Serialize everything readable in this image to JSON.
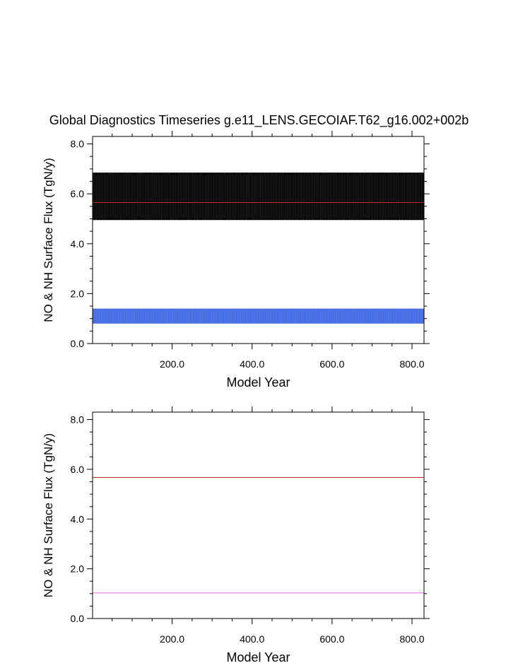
{
  "title": "Global Diagnostics Timeseries g.e11_LENS.GECOIAF.T62_g16.002+002b",
  "colors": {
    "black_band": "#000000",
    "blue_band": "#4169e1",
    "red_line": "#cc2222",
    "magenta_line": "#ff66ff"
  },
  "chart_data": [
    {
      "type": "line",
      "title": "Global Diagnostics Timeseries g.e11_LENS.GECOIAF.T62_g16.002+002b",
      "xlabel": "Model Year",
      "ylabel": "NO & NH Surface Flux (TgN/y)",
      "xlim": [
        1,
        830
      ],
      "ylim": [
        0,
        8.3
      ],
      "x_ticks": [
        200,
        400,
        600,
        800
      ],
      "x_tick_labels": [
        "200.0",
        "400.0",
        "600.0",
        "800.0"
      ],
      "y_ticks": [
        0,
        2,
        4,
        6,
        8
      ],
      "y_tick_labels": [
        "0.0",
        "2.0",
        "4.0",
        "6.0",
        "8.0"
      ],
      "grid": false,
      "series": [
        {
          "color": "#000000",
          "style": "oscillating band",
          "min": 4.95,
          "max": 6.85
        },
        {
          "color": "#cc2222",
          "style": "mean line",
          "value": 5.65
        },
        {
          "color": "#4169e1",
          "style": "oscillating band",
          "min": 0.8,
          "max": 1.4
        }
      ]
    },
    {
      "type": "line",
      "title": "",
      "xlabel": "Model Year",
      "ylabel": "NO & NH Surface Flux (TgN/y)",
      "xlim": [
        1,
        830
      ],
      "ylim": [
        0,
        8.3
      ],
      "x_ticks": [
        200,
        400,
        600,
        800
      ],
      "x_tick_labels": [
        "200.0",
        "400.0",
        "600.0",
        "800.0"
      ],
      "y_ticks": [
        0,
        2,
        4,
        6,
        8
      ],
      "y_tick_labels": [
        "0.0",
        "2.0",
        "4.0",
        "6.0",
        "8.0"
      ],
      "grid": false,
      "series": [
        {
          "color": "#cc2222",
          "style": "mean line",
          "value": 5.67
        },
        {
          "color": "#ff66ff",
          "style": "mean line",
          "value": 1.03
        }
      ]
    }
  ]
}
